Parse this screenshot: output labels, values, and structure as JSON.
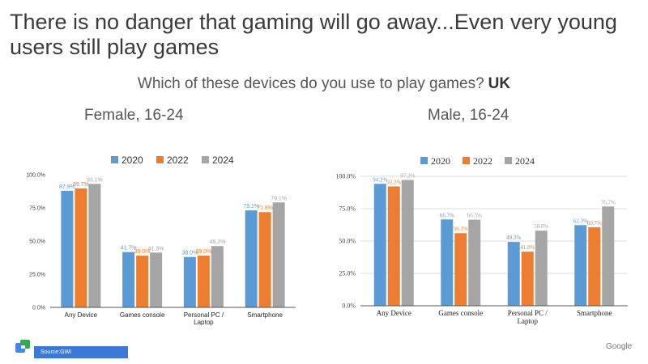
{
  "slide": {
    "title": "There is no danger that gaming will go away...Even very young users still play games",
    "question": "Which of these devices do you use to play games?",
    "country": "UK",
    "source": "Source:GWI",
    "brand": "Google"
  },
  "colors": {
    "2020": "#5b9bd5",
    "2022": "#ed7d31",
    "2024": "#a5a5a5"
  },
  "chart_data": [
    {
      "type": "bar",
      "title": "Female, 16-24",
      "categories": [
        "Any Device",
        "Games console",
        "Personal PC / Laptop",
        "Smartphone"
      ],
      "category_lines": [
        [
          "Any Device"
        ],
        [
          "Games console"
        ],
        [
          "Personal PC /",
          "Laptop"
        ],
        [
          "Smartphone"
        ]
      ],
      "series": [
        {
          "name": "2020",
          "values": [
            87.9,
            41.7,
            38.0,
            73.1
          ],
          "labels": [
            "87.9%",
            "41.7%",
            "38.0%",
            "73.1%"
          ]
        },
        {
          "name": "2022",
          "values": [
            89.7,
            39.0,
            39.0,
            71.8
          ],
          "labels": [
            "89.7%",
            "39.0%",
            "39.0%",
            "71.8%"
          ]
        },
        {
          "name": "2024",
          "values": [
            93.1,
            41.3,
            46.2,
            79.1
          ],
          "labels": [
            "93.1%",
            "41.3%",
            "46.2%",
            "79.1%"
          ]
        }
      ],
      "yticks": [
        "0.0%",
        "25.0%",
        "50.0%",
        "75.0%",
        "100.0%"
      ],
      "ylim": [
        0,
        100
      ],
      "grid": false,
      "legend": "top"
    },
    {
      "type": "bar",
      "title": "Male, 16-24",
      "categories": [
        "Any Device",
        "Games console",
        "Personal PC / Laptop",
        "Smartphone"
      ],
      "category_lines": [
        [
          "Any Device"
        ],
        [
          "Games console"
        ],
        [
          "Personal PC /",
          "Laptop"
        ],
        [
          "Smartphone"
        ]
      ],
      "series": [
        {
          "name": "2020",
          "values": [
            94.2,
            66.7,
            49.3,
            62.3
          ],
          "labels": [
            "94.2%",
            "66.7%",
            "49.3%",
            "62.3%"
          ]
        },
        {
          "name": "2022",
          "values": [
            92.2,
            56.1,
            41.8,
            60.7
          ],
          "labels": [
            "92.2%",
            "56.1%",
            "41.8%",
            "60.7%"
          ]
        },
        {
          "name": "2024",
          "values": [
            97.2,
            66.5,
            58.0,
            76.7
          ],
          "labels": [
            "97.2%",
            "66.5%",
            "58.0%",
            "76.7%"
          ]
        }
      ],
      "yticks": [
        "0.0%",
        "25.0%",
        "50.0%",
        "75.0%",
        "100.0%"
      ],
      "ylim": [
        0,
        100
      ],
      "grid": true,
      "legend": "top"
    }
  ]
}
